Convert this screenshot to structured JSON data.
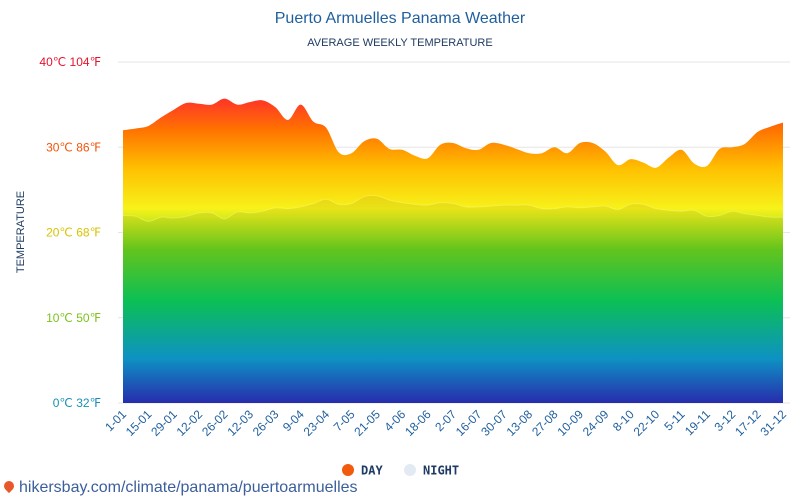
{
  "chart_data": {
    "type": "area",
    "title": "Puerto Armuelles Panama Weather",
    "subtitle": "AVERAGE WEEKLY TEMPERATURE",
    "ylabel": "TEMPERATURE",
    "ylim": [
      0,
      40
    ],
    "yticks": [
      {
        "value": 40,
        "label": "40℃ 104℉",
        "color": "#e8112d"
      },
      {
        "value": 30,
        "label": "30℃ 86℉",
        "color": "#f2550a"
      },
      {
        "value": 20,
        "label": "20℃ 68℉",
        "color": "#d9c300"
      },
      {
        "value": 10,
        "label": "10℃ 50℉",
        "color": "#7dc21e"
      },
      {
        "value": 0,
        "label": "0℃ 32℉",
        "color": "#1a8fb5"
      }
    ],
    "xtick_labels": [
      "1-01",
      "15-01",
      "29-01",
      "12-02",
      "26-02",
      "12-03",
      "26-03",
      "9-04",
      "23-04",
      "7-05",
      "21-05",
      "4-06",
      "18-06",
      "2-07",
      "16-07",
      "30-07",
      "13-08",
      "27-08",
      "10-09",
      "24-09",
      "8-10",
      "22-10",
      "5-11",
      "19-11",
      "3-12",
      "17-12",
      "31-12"
    ],
    "grid": true,
    "legend_position": "bottom",
    "series": [
      {
        "name": "DAY",
        "color": "#f25a0d",
        "values": [
          32.0,
          32.2,
          32.5,
          33.5,
          34.4,
          35.2,
          35.1,
          35.0,
          35.7,
          35.0,
          35.3,
          35.5,
          34.7,
          33.2,
          35.0,
          33.0,
          32.3,
          29.4,
          29.3,
          30.7,
          31.0,
          29.8,
          29.7,
          29.0,
          28.7,
          30.3,
          30.5,
          29.9,
          29.7,
          30.5,
          30.3,
          29.8,
          29.3,
          29.3,
          30.0,
          29.3,
          30.5,
          30.5,
          29.5,
          27.9,
          28.6,
          28.2,
          27.6,
          28.8,
          29.7,
          28.1,
          27.8,
          29.8,
          30.0,
          30.4,
          31.8,
          32.4,
          32.9
        ]
      },
      {
        "name": "NIGHT",
        "color": "#e3eaf3",
        "values": [
          22.0,
          21.9,
          21.3,
          21.8,
          21.7,
          21.9,
          22.3,
          22.3,
          21.6,
          22.4,
          22.3,
          22.5,
          22.9,
          22.8,
          23.0,
          23.4,
          23.9,
          23.3,
          23.4,
          24.2,
          24.3,
          23.8,
          23.5,
          23.3,
          23.2,
          23.5,
          23.4,
          23.0,
          23.0,
          23.1,
          23.2,
          23.2,
          23.2,
          22.8,
          22.8,
          23.0,
          22.9,
          23.0,
          23.1,
          22.7,
          23.3,
          23.3,
          22.8,
          22.6,
          22.5,
          22.6,
          21.9,
          22.0,
          22.5,
          22.2,
          22.0,
          21.8,
          21.8
        ]
      }
    ]
  },
  "footer": {
    "text": "hikersbay.com/climate/panama/puertoarmuelles"
  }
}
